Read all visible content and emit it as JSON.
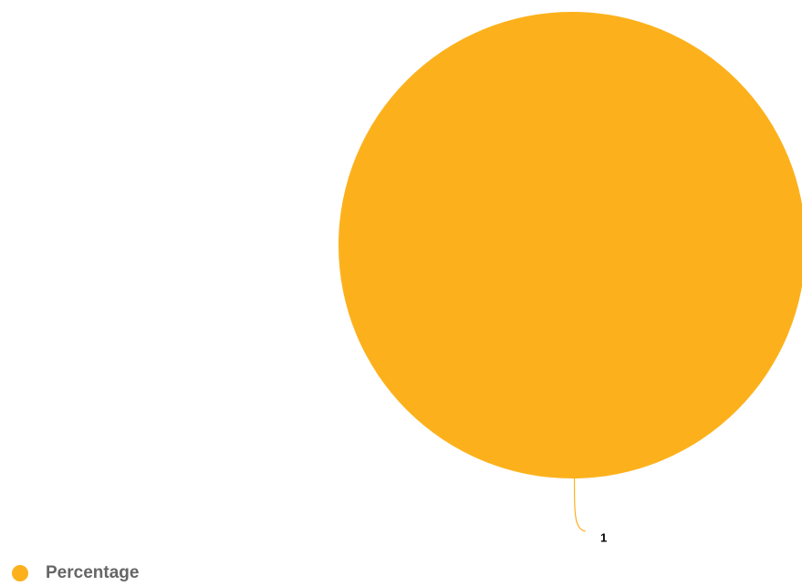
{
  "chart_data": {
    "type": "pie",
    "series": [
      {
        "name": "Percentage",
        "color": "#fcb11c",
        "values": [
          1
        ]
      }
    ],
    "legend": "bottom-left"
  }
}
